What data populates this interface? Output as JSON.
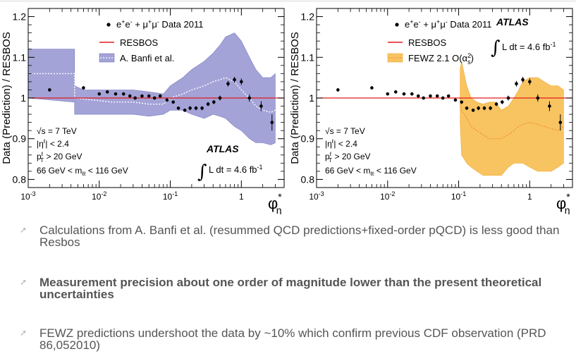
{
  "colors": {
    "banfi_band": "#a3a3d8",
    "banfi_band_edge": "#7b7bc2",
    "fewz_band": "#f8c461",
    "fewz_band_edge": "#f0a830",
    "fewz_line": "#f2923a",
    "resbos": "#e31a1c",
    "data": "#000000",
    "bullet_text": "#555555",
    "arrow": "#b3b3b3"
  },
  "chart_data": [
    {
      "type": "line",
      "name": "left-panel",
      "ylabel": "Data (Prediction) / RESBOS",
      "xlabel": "φ*η",
      "xlabel_main": "φ",
      "xlabel_sup": "*",
      "xlabel_sub": "η",
      "xscale": "log",
      "xlim": [
        0.001,
        4
      ],
      "ylim": [
        0.78,
        1.22
      ],
      "yticks": [
        0.8,
        0.9,
        1.0,
        1.1,
        1.2
      ],
      "ytick_labels": [
        "0.8",
        "0.9",
        "1",
        "1.1",
        "1.2"
      ],
      "xticks": [
        0.001,
        0.01,
        0.1,
        1
      ],
      "xtick_labels": [
        "10-3",
        "10-2",
        "10-1",
        "1"
      ],
      "legend": {
        "data_label": "e+e- + μ+μ- Data 2011",
        "resbos_label": "RESBOS",
        "model_label": "A. Banfi et al."
      },
      "atlas": "ATLAS",
      "lumi": "L dt = 4.6 fb-1",
      "info": [
        "√s = 7 TeV",
        "|ηℓ| < 2.4",
        "pℓT > 20 GeV",
        "66 GeV < mℓℓ < 116 GeV"
      ],
      "resbos_ratio": 1.0,
      "data_x": [
        0.002,
        0.006,
        0.01,
        0.013,
        0.017,
        0.022,
        0.027,
        0.032,
        0.04,
        0.05,
        0.06,
        0.072,
        0.09,
        0.11,
        0.13,
        0.16,
        0.19,
        0.23,
        0.28,
        0.34,
        0.41,
        0.5,
        0.65,
        0.8,
        1.0,
        1.3,
        1.9,
        2.7
      ],
      "data_y": [
        1.02,
        1.025,
        1.01,
        1.015,
        1.01,
        1.01,
        1.005,
        1.0,
        1.005,
        1.005,
        1.0,
        1.005,
        0.995,
        0.99,
        0.975,
        0.97,
        0.975,
        0.975,
        0.975,
        0.985,
        0.99,
        1.0,
        1.035,
        1.045,
        1.04,
        1.0,
        0.98,
        0.94
      ],
      "data_err": [
        0.004,
        0.004,
        0.004,
        0.004,
        0.004,
        0.004,
        0.004,
        0.004,
        0.004,
        0.004,
        0.004,
        0.004,
        0.004,
        0.004,
        0.004,
        0.004,
        0.005,
        0.005,
        0.005,
        0.005,
        0.005,
        0.006,
        0.007,
        0.007,
        0.008,
        0.009,
        0.012,
        0.02
      ],
      "band_x": [
        0.001,
        0.0045,
        0.0045,
        0.006,
        0.015,
        0.03,
        0.05,
        0.08,
        0.1,
        0.15,
        0.2,
        0.3,
        0.4,
        0.5,
        0.6,
        0.8,
        1.0,
        1.3,
        1.6,
        2.0,
        2.6,
        3.0
      ],
      "band_lo": [
        1.0,
        0.99,
        0.96,
        0.96,
        0.96,
        0.96,
        0.955,
        0.96,
        0.97,
        0.97,
        0.96,
        0.95,
        0.96,
        0.955,
        0.95,
        0.93,
        0.92,
        0.9,
        0.89,
        0.89,
        0.885,
        0.89
      ],
      "band_hi": [
        1.12,
        1.12,
        1.03,
        1.02,
        1.02,
        1.02,
        1.015,
        1.01,
        1.03,
        1.05,
        1.07,
        1.09,
        1.11,
        1.13,
        1.15,
        1.16,
        1.14,
        1.1,
        1.07,
        1.05,
        1.05,
        1.06
      ],
      "model_x": [
        0.001,
        0.0045,
        0.0045,
        0.015,
        0.03,
        0.05,
        0.08,
        0.1,
        0.15,
        0.2,
        0.3,
        0.4,
        0.5,
        0.6,
        0.8,
        1.0,
        1.3,
        1.6,
        2.0,
        2.6,
        3.0
      ],
      "model_y": [
        1.06,
        1.06,
        1.0,
        0.99,
        0.99,
        0.985,
        0.985,
        1.0,
        1.01,
        1.02,
        1.03,
        1.04,
        1.045,
        1.05,
        1.04,
        1.02,
        1.0,
        0.98,
        0.97,
        0.965,
        0.97
      ]
    },
    {
      "type": "line",
      "name": "right-panel",
      "ylabel": "Data (Prediction) / RESBOS",
      "xlabel": "φ*η",
      "xlabel_main": "φ",
      "xlabel_sup": "*",
      "xlabel_sub": "η",
      "xscale": "log",
      "xlim": [
        0.001,
        4
      ],
      "ylim": [
        0.78,
        1.22
      ],
      "yticks": [
        0.8,
        0.9,
        1.0,
        1.1,
        1.2
      ],
      "ytick_labels": [
        "0.8",
        "0.9",
        "1",
        "1.1",
        "1.2"
      ],
      "xticks": [
        0.001,
        0.01,
        0.1,
        1
      ],
      "xtick_labels": [
        "10-3",
        "10-2",
        "10-1",
        "1"
      ],
      "legend": {
        "data_label": "e+e- + μ+μ- Data 2011",
        "resbos_label": "RESBOS",
        "model_label": "FEWZ 2.1 O(α2s)"
      },
      "atlas": "ATLAS",
      "lumi": "L dt = 4.6 fb-1",
      "info": [
        "√s = 7 TeV",
        "|ηℓ| < 2.4",
        "pℓT > 20 GeV",
        "66 GeV < mℓℓ < 116 GeV"
      ],
      "resbos_ratio": 1.0,
      "data_x": [
        0.002,
        0.006,
        0.01,
        0.013,
        0.017,
        0.022,
        0.027,
        0.032,
        0.04,
        0.05,
        0.06,
        0.072,
        0.09,
        0.11,
        0.13,
        0.16,
        0.19,
        0.23,
        0.28,
        0.34,
        0.41,
        0.5,
        0.65,
        0.8,
        1.0,
        1.3,
        1.9,
        2.7
      ],
      "data_y": [
        1.02,
        1.025,
        1.01,
        1.015,
        1.01,
        1.01,
        1.005,
        1.0,
        1.005,
        1.005,
        1.0,
        1.005,
        0.995,
        0.99,
        0.975,
        0.97,
        0.975,
        0.975,
        0.975,
        0.985,
        0.99,
        1.0,
        1.035,
        1.045,
        1.04,
        1.0,
        0.98,
        0.94
      ],
      "data_err": [
        0.004,
        0.004,
        0.004,
        0.004,
        0.004,
        0.004,
        0.004,
        0.004,
        0.004,
        0.004,
        0.004,
        0.004,
        0.004,
        0.004,
        0.004,
        0.004,
        0.005,
        0.005,
        0.005,
        0.005,
        0.005,
        0.006,
        0.007,
        0.007,
        0.008,
        0.009,
        0.012,
        0.02
      ],
      "band_x": [
        0.105,
        0.105,
        0.11,
        0.13,
        0.15,
        0.18,
        0.22,
        0.27,
        0.33,
        0.4,
        0.5,
        0.6,
        0.7,
        0.8,
        1.0,
        1.3,
        1.6,
        2.0,
        2.5,
        3.0
      ],
      "band_lo": [
        1.0,
        0.94,
        0.86,
        0.84,
        0.83,
        0.82,
        0.81,
        0.81,
        0.81,
        0.81,
        0.83,
        0.84,
        0.84,
        0.84,
        0.83,
        0.82,
        0.82,
        0.82,
        0.83,
        0.84
      ],
      "band_hi": [
        1.0,
        1.07,
        1.09,
        1.03,
        1.0,
        0.99,
        0.985,
        0.99,
        0.99,
        0.97,
        0.98,
        1.0,
        1.02,
        1.04,
        1.05,
        1.05,
        1.04,
        1.03,
        1.03,
        1.02
      ],
      "model_x": [
        0.105,
        0.11,
        0.13,
        0.15,
        0.18,
        0.22,
        0.27,
        0.33,
        0.4,
        0.5,
        0.6,
        0.7,
        0.8,
        1.0,
        1.3,
        1.6,
        2.0,
        2.5,
        3.0
      ],
      "model_y": [
        1.0,
        0.97,
        0.95,
        0.93,
        0.92,
        0.91,
        0.9,
        0.9,
        0.9,
        0.91,
        0.92,
        0.93,
        0.935,
        0.94,
        0.935,
        0.93,
        0.925,
        0.92,
        0.93
      ]
    }
  ],
  "bullets": [
    {
      "text": "Calculations from A. Banfi et al. (resummed QCD predictions+fixed-order pQCD) is less good than Resbos",
      "bold": false
    },
    {
      "text": "Measurement precision about one order of magnitude lower than the present theoretical uncertainties",
      "bold": true
    },
    {
      "text": "FEWZ predictions undershoot the data by ~10% which confirm previous CDF observation (PRD 86,052010)",
      "bold": false
    }
  ],
  "bullet_icon": "arrow-icon"
}
